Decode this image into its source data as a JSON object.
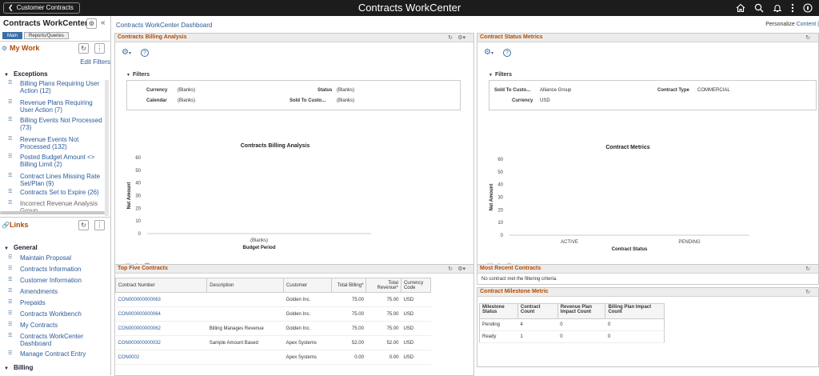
{
  "header": {
    "back_label": "Customer Contracts",
    "title": "Contracts WorkCenter"
  },
  "sidebar": {
    "title": "Contracts WorkCenter",
    "collapse_glyph": "«",
    "tabs": [
      {
        "label": "Main"
      },
      {
        "label": "Reports/Queries"
      }
    ],
    "my_work": {
      "title": "My Work",
      "edit_filters": "Edit Filters"
    },
    "exceptions_title": "Exceptions",
    "exceptions": [
      {
        "label": "Billing Plans Requiring User Action (12)"
      },
      {
        "label": "Revenue Plans Requiring User Action (7)"
      },
      {
        "label": "Billing Events Not Processed (73)"
      },
      {
        "label": "Revenue Events Not Processed (132)"
      },
      {
        "label": "Posted Budget Amount <> Billing Limit (2)"
      },
      {
        "label": "Contract Lines Missing Rate Set/Plan (9)"
      },
      {
        "label": "Contracts Set to Expire (26)"
      },
      {
        "label": "Incorrect Revenue Analysis Group"
      }
    ],
    "links": {
      "title": "Links"
    },
    "general_title": "General",
    "general": [
      {
        "label": "Maintain Proposal"
      },
      {
        "label": "Contracts Information"
      },
      {
        "label": "Customer Information"
      },
      {
        "label": "Amendments"
      },
      {
        "label": "Prepaids"
      },
      {
        "label": "Contracts Workbench"
      },
      {
        "label": "My Contracts"
      },
      {
        "label": "Contracts WorkCenter Dashboard"
      },
      {
        "label": "Manage Contract Entry"
      }
    ],
    "billing_title": "Billing"
  },
  "dashboard": {
    "breadcrumb": "Contracts WorkCenter Dashboard",
    "personalize_label": "Personalize",
    "personalize_link": "Content |",
    "billing": {
      "title": "Contracts Billing Analysis",
      "filters_label": "Filters",
      "filters": {
        "currency_label": "Currency",
        "currency": "(Blanks)",
        "calendar_label": "Calendar",
        "calendar": "(Blanks)",
        "status_label": "Status",
        "status": "(Blanks)",
        "soldto_label": "Sold To Custo...",
        "soldto": "(Blanks)"
      },
      "chart_title": "Contracts Billing Analysis"
    },
    "status": {
      "title": "Contract Status Metrics",
      "filters_label": "Filters",
      "filters": {
        "soldto_label": "Sold To Custo...",
        "soldto": "Alliance Group",
        "type_label": "Contract Type",
        "type": "COMMERCIAL",
        "currency_label": "Currency",
        "currency": "USD"
      },
      "chart_title": "Contract Metrics"
    },
    "top_five": {
      "title": "Top Five Contracts",
      "headers": [
        "Contract Number",
        "Description",
        "Customer",
        "Total Billing*",
        "Total Revenue*",
        "Currency Code"
      ],
      "rows": [
        [
          "CON000000000063",
          "",
          "Golden Inc.",
          "75.00",
          "75.00",
          "USD"
        ],
        [
          "CON000000000064",
          "",
          "Golden Inc.",
          "75.00",
          "75.00",
          "USD"
        ],
        [
          "CON000000000062",
          "Billing Manages Revenue",
          "Golden Inc.",
          "75.00",
          "75.00",
          "USD"
        ],
        [
          "CON000000000032",
          "Sample Amount Based",
          "Apex Systems",
          "52.00",
          "52.00",
          "USD"
        ],
        [
          "CON0002",
          "",
          "Apex Systems",
          "0.00",
          "0.00",
          "USD"
        ]
      ]
    },
    "recent": {
      "title": "Most Recent Contracts",
      "message": "No contract met the filtering criteria."
    },
    "milestone": {
      "title": "Contract Milestone Metric",
      "headers": [
        "Milestone Status",
        "Contract Count",
        "Revenue Plan Impact Count",
        "Billing Plan Impact Count"
      ],
      "rows": [
        [
          "Pending",
          "4",
          "0",
          "0"
        ],
        [
          "Ready",
          "1",
          "0",
          "0"
        ]
      ]
    }
  },
  "chart_data": [
    {
      "type": "bar",
      "title": "Contracts Billing Analysis",
      "xlabel": "Budget Period",
      "ylabel": "Net Amount",
      "categories": [
        "(Blanks)"
      ],
      "values": [
        0
      ],
      "yticks": [
        0,
        10,
        20,
        30,
        40,
        50,
        60
      ],
      "ylim": [
        0,
        60
      ],
      "grid": false
    },
    {
      "type": "bar",
      "title": "Contract Metrics",
      "xlabel": "Contract Status",
      "ylabel": "Net Amount",
      "categories": [
        "ACTIVE",
        "PENDING"
      ],
      "values": [
        0,
        0
      ],
      "yticks": [
        0,
        10,
        20,
        30,
        40,
        50,
        60
      ],
      "ylim": [
        0,
        60
      ],
      "grid": false
    }
  ],
  "colors": {
    "header_bg": "#1c1c1c",
    "accent_orange": "#b34a00",
    "link_blue": "#2a5a9a",
    "tab_active": "#3a6fa6"
  }
}
